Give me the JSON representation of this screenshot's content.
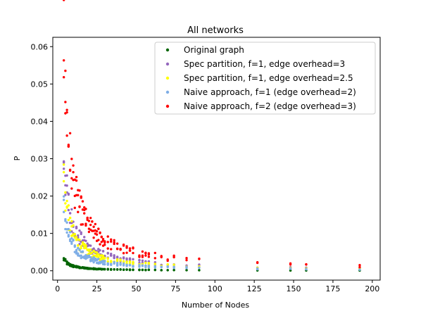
{
  "chart_data": {
    "type": "scatter",
    "title": "All networks",
    "xlabel": "Number of Nodes",
    "ylabel": "P",
    "xlim": [
      -3,
      205
    ],
    "ylim": [
      -0.0025,
      0.0625
    ],
    "xticks": [
      0,
      25,
      50,
      75,
      100,
      125,
      150,
      175,
      200
    ],
    "yticks": [
      0.0,
      0.01,
      0.02,
      0.03,
      0.04,
      0.05,
      0.06
    ],
    "ytick_labels": [
      "0.00",
      "0.01",
      "0.02",
      "0.03",
      "0.04",
      "0.05",
      "0.06"
    ],
    "grid": false,
    "legend_position": "top-right",
    "series": [
      {
        "name": "Original graph",
        "color": "#006400",
        "k": 0.0121,
        "x": [
          4,
          5,
          6,
          7,
          8,
          9,
          10,
          11,
          12,
          13,
          14,
          15,
          16,
          17,
          18,
          19,
          20,
          21,
          22,
          23,
          24,
          25,
          26,
          27,
          28,
          29,
          30,
          32,
          34,
          36,
          38,
          40,
          42,
          44,
          46,
          48,
          52,
          54,
          56,
          58,
          62,
          66,
          70,
          74,
          82,
          90,
          127,
          148,
          158,
          192
        ]
      },
      {
        "name": "Spec partition, f=1, edge overhead=3",
        "color": "#9467bd",
        "k": 0.121,
        "x": [
          4,
          5,
          6,
          7,
          8,
          9,
          10,
          11,
          12,
          13,
          14,
          15,
          16,
          17,
          18,
          19,
          20,
          21,
          22,
          23,
          24,
          25,
          26,
          27,
          28,
          29,
          30,
          32,
          34,
          36,
          38,
          40,
          42,
          44,
          46,
          48,
          52,
          54,
          56,
          58,
          62,
          66,
          70,
          74,
          82,
          90,
          127,
          148,
          158,
          192
        ]
      },
      {
        "name": "Spec partition, f=1, edge overhead=2.5",
        "color": "#ffff00",
        "k": 0.096,
        "x": [
          4,
          5,
          6,
          7,
          8,
          9,
          10,
          11,
          12,
          13,
          14,
          15,
          16,
          17,
          18,
          19,
          20,
          21,
          22,
          23,
          24,
          25,
          26,
          27,
          28,
          29,
          30,
          32,
          34,
          36,
          38,
          40,
          42,
          44,
          46,
          48,
          52,
          54,
          56,
          58,
          62,
          66,
          70,
          74,
          82,
          90,
          127,
          148,
          158,
          192
        ]
      },
      {
        "name": "Naive approach, f=1 (edge overhead=2)",
        "color": "#7faee6",
        "k": 0.0655,
        "x": [
          4,
          5,
          6,
          7,
          8,
          9,
          10,
          11,
          12,
          13,
          14,
          15,
          16,
          17,
          18,
          19,
          20,
          21,
          22,
          23,
          24,
          25,
          26,
          27,
          28,
          29,
          30,
          32,
          34,
          36,
          38,
          40,
          42,
          44,
          46,
          48,
          52,
          54,
          56,
          58,
          62,
          66,
          70,
          74,
          82,
          90,
          127,
          148,
          158,
          192
        ]
      },
      {
        "name": "Naive approach, f=2 (edge overhead=3)",
        "color": "#ff0000",
        "k": 0.236,
        "x": [
          4,
          5,
          6,
          7,
          8,
          9,
          10,
          11,
          12,
          13,
          14,
          15,
          16,
          17,
          18,
          19,
          20,
          21,
          22,
          23,
          24,
          25,
          26,
          27,
          28,
          29,
          30,
          32,
          34,
          36,
          38,
          40,
          42,
          44,
          46,
          48,
          52,
          54,
          56,
          58,
          62,
          66,
          70,
          74,
          82,
          90,
          127,
          148,
          158,
          192
        ]
      }
    ]
  }
}
